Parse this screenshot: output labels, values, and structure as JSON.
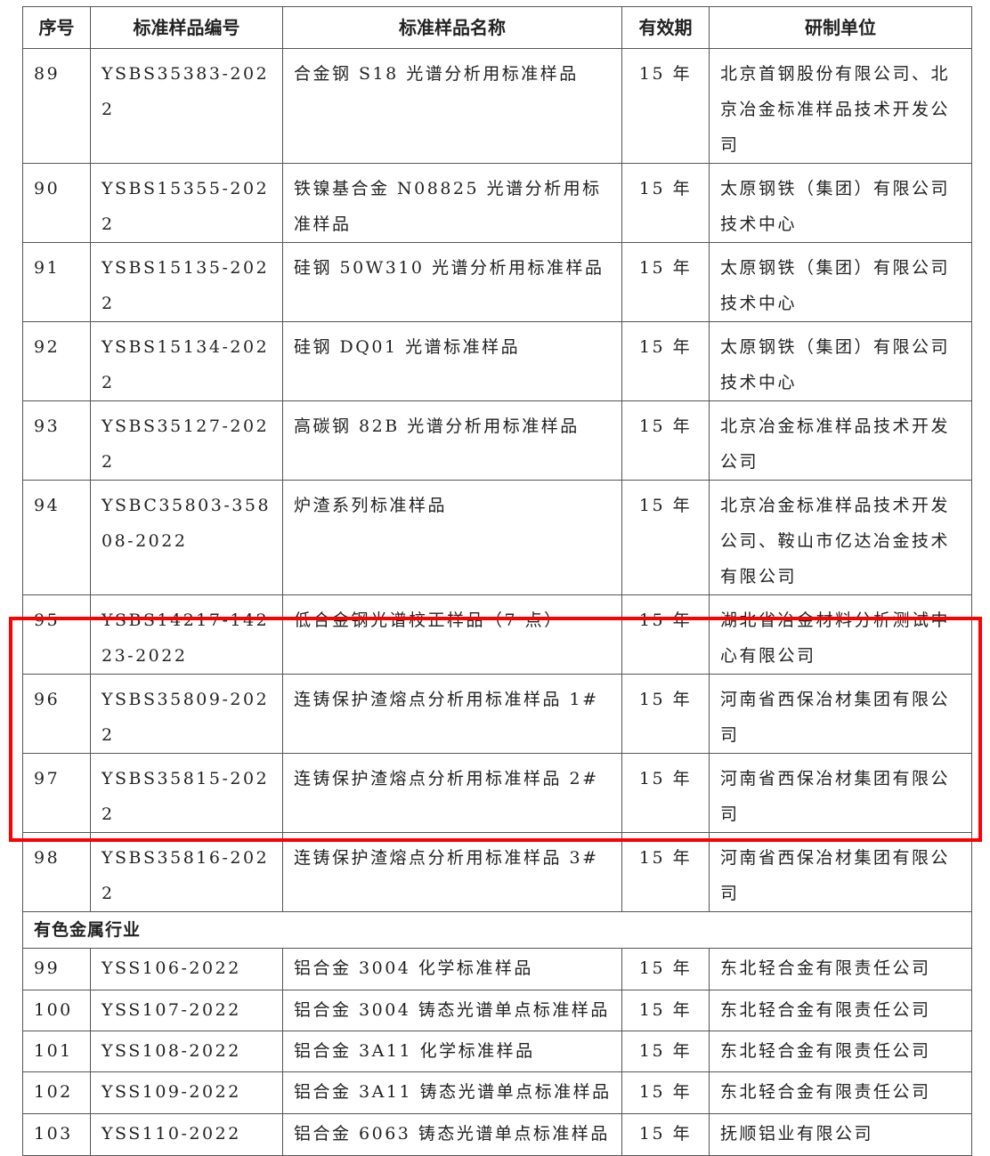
{
  "headers": [
    "序号",
    "标准样品编号",
    "标准样品名称",
    "有效期",
    "研制单位"
  ],
  "rows": [
    {
      "no": "89",
      "code": "YSBS35383-2022",
      "name": "合金钢 S18 光谱分析用标准样品",
      "validity": "15 年",
      "unit": "北京首钢股份有限公司、北京冶金标准样品技术开发公司"
    },
    {
      "no": "90",
      "code": "YSBS15355-2022",
      "name": "铁镍基合金 N08825 光谱分析用标准样品",
      "validity": "15 年",
      "unit": "太原钢铁（集团）有限公司技术中心"
    },
    {
      "no": "91",
      "code": "YSBS15135-2022",
      "name": "硅钢 50W310 光谱分析用标准样品",
      "validity": "15 年",
      "unit": "太原钢铁（集团）有限公司技术中心"
    },
    {
      "no": "92",
      "code": "YSBS15134-2022",
      "name": "硅钢 DQ01 光谱标准样品",
      "validity": "15 年",
      "unit": "太原钢铁（集团）有限公司技术中心"
    },
    {
      "no": "93",
      "code": "YSBS35127-2022",
      "name": "高碳钢 82B 光谱分析用标准样品",
      "validity": "15 年",
      "unit": "北京冶金标准样品技术开发公司"
    },
    {
      "no": "94",
      "code": "YSBC35803-35808-2022",
      "name": "炉渣系列标准样品",
      "validity": "15 年",
      "unit": "北京冶金标准样品技术开发公司、鞍山市亿达冶金技术有限公司"
    },
    {
      "no": "95",
      "code": "YSBS14217-14223-2022",
      "name": "低合金钢光谱校正样品（7 点）",
      "validity": "15 年",
      "unit": "湖北省冶金材料分析测试中心有限公司"
    },
    {
      "no": "96",
      "code": "YSBS35809-2022",
      "name": "连铸保护渣熔点分析用标准样品 1#",
      "validity": "15 年",
      "unit": "河南省西保冶材集团有限公司"
    },
    {
      "no": "97",
      "code": "YSBS35815-2022",
      "name": "连铸保护渣熔点分析用标准样品 2#",
      "validity": "15 年",
      "unit": "河南省西保冶材集团有限公司"
    },
    {
      "no": "98",
      "code": "YSBS35816-2022",
      "name": "连铸保护渣熔点分析用标准样品 3#",
      "validity": "15 年",
      "unit": "河南省西保冶材集团有限公司"
    }
  ],
  "section": "有色金属行业",
  "rows2": [
    {
      "no": "99",
      "code": "YSS106-2022",
      "name": "铝合金 3004 化学标准样品",
      "validity": "15 年",
      "unit": "东北轻合金有限责任公司"
    },
    {
      "no": "100",
      "code": "YSS107-2022",
      "name": "铝合金 3004 铸态光谱单点标准样品",
      "validity": "15 年",
      "unit": "东北轻合金有限责任公司"
    },
    {
      "no": "101",
      "code": "YSS108-2022",
      "name": "铝合金 3A11 化学标准样品",
      "validity": "15 年",
      "unit": "东北轻合金有限责任公司"
    },
    {
      "no": "102",
      "code": "YSS109-2022",
      "name": "铝合金 3A11 铸态光谱单点标准样品",
      "validity": "15 年",
      "unit": "东北轻合金有限责任公司"
    },
    {
      "no": "103",
      "code": "YSS110-2022",
      "name": "铝合金 6063 铸态光谱单点标准样品",
      "validity": "15 年",
      "unit": "抚顺铝业有限公司"
    }
  ],
  "highlight_color": "#ff0000"
}
